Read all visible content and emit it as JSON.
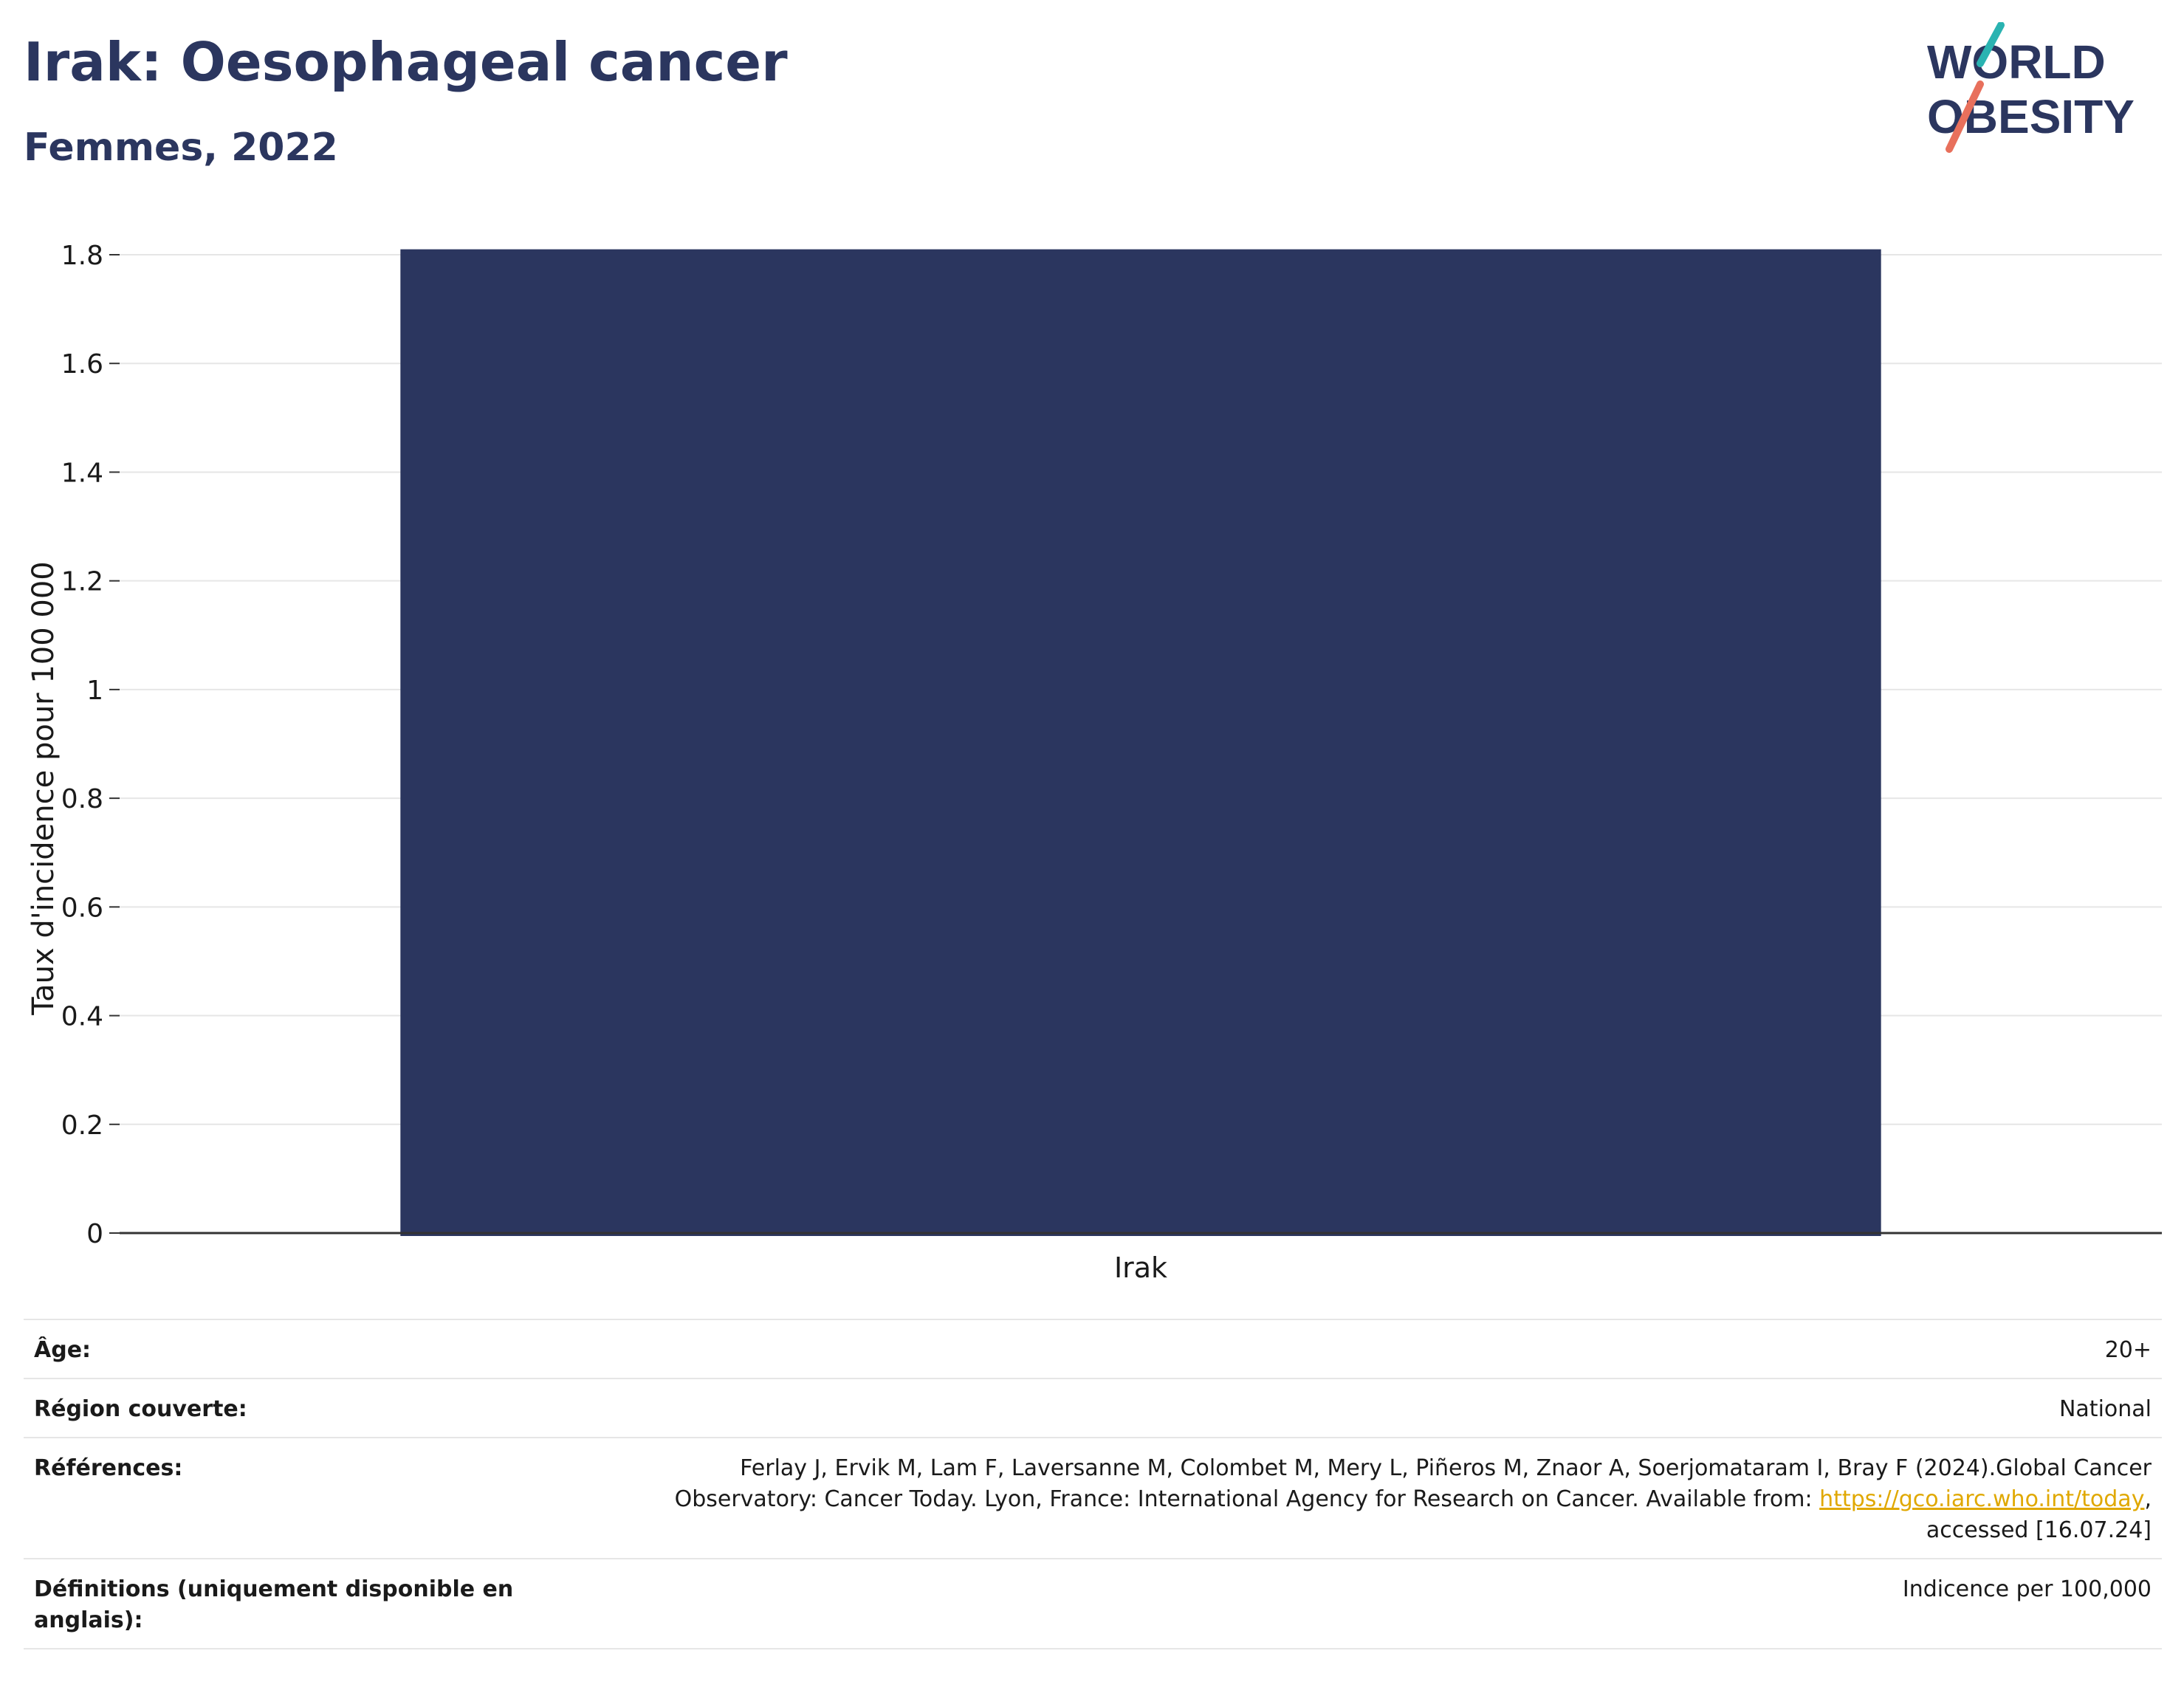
{
  "header": {
    "title": "Irak: Oesophageal cancer",
    "subtitle": "Femmes, 2022"
  },
  "logo": {
    "line1": "WORLD",
    "line2": "OBESITY",
    "colors": {
      "navy": "#2b365f",
      "teal": "#2ab3b1",
      "coral": "#e8705c"
    }
  },
  "chart_data": {
    "type": "bar",
    "categories": [
      "Irak"
    ],
    "values": [
      1.81
    ],
    "title": "",
    "xlabel": "",
    "ylabel": "Taux d'incidence pour 100 000",
    "ylim": [
      0,
      1.8
    ],
    "yticks": [
      0,
      0.2,
      0.4,
      0.6,
      0.8,
      1,
      1.2,
      1.4,
      1.6,
      1.8
    ],
    "ytick_labels": [
      "0",
      "0.2",
      "0.4",
      "0.6",
      "0.8",
      "1",
      "1.2",
      "1.4",
      "1.6",
      "1.8"
    ],
    "grid": true,
    "bar_color": "#2b365f"
  },
  "info": {
    "age_label": "Âge:",
    "age_value": "20+",
    "region_label": "Région couverte:",
    "region_value": "National",
    "references_label": "Références:",
    "references_text_1": "Ferlay J, Ervik M, Lam F, Laversanne M, Colombet M, Mery L, Piñeros M, Znaor A, Soerjomataram I, Bray F (2024).Global Cancer",
    "references_text_2": "Observatory: Cancer Today. Lyon, France: International Agency for Research on Cancer. Available from:",
    "references_link": "https://gco.iarc.who.int/today",
    "references_text_3": "accessed [16.07.24]",
    "definitions_label": "Définitions (uniquement disponible en anglais):",
    "definitions_value": "Indicence per 100,000"
  }
}
